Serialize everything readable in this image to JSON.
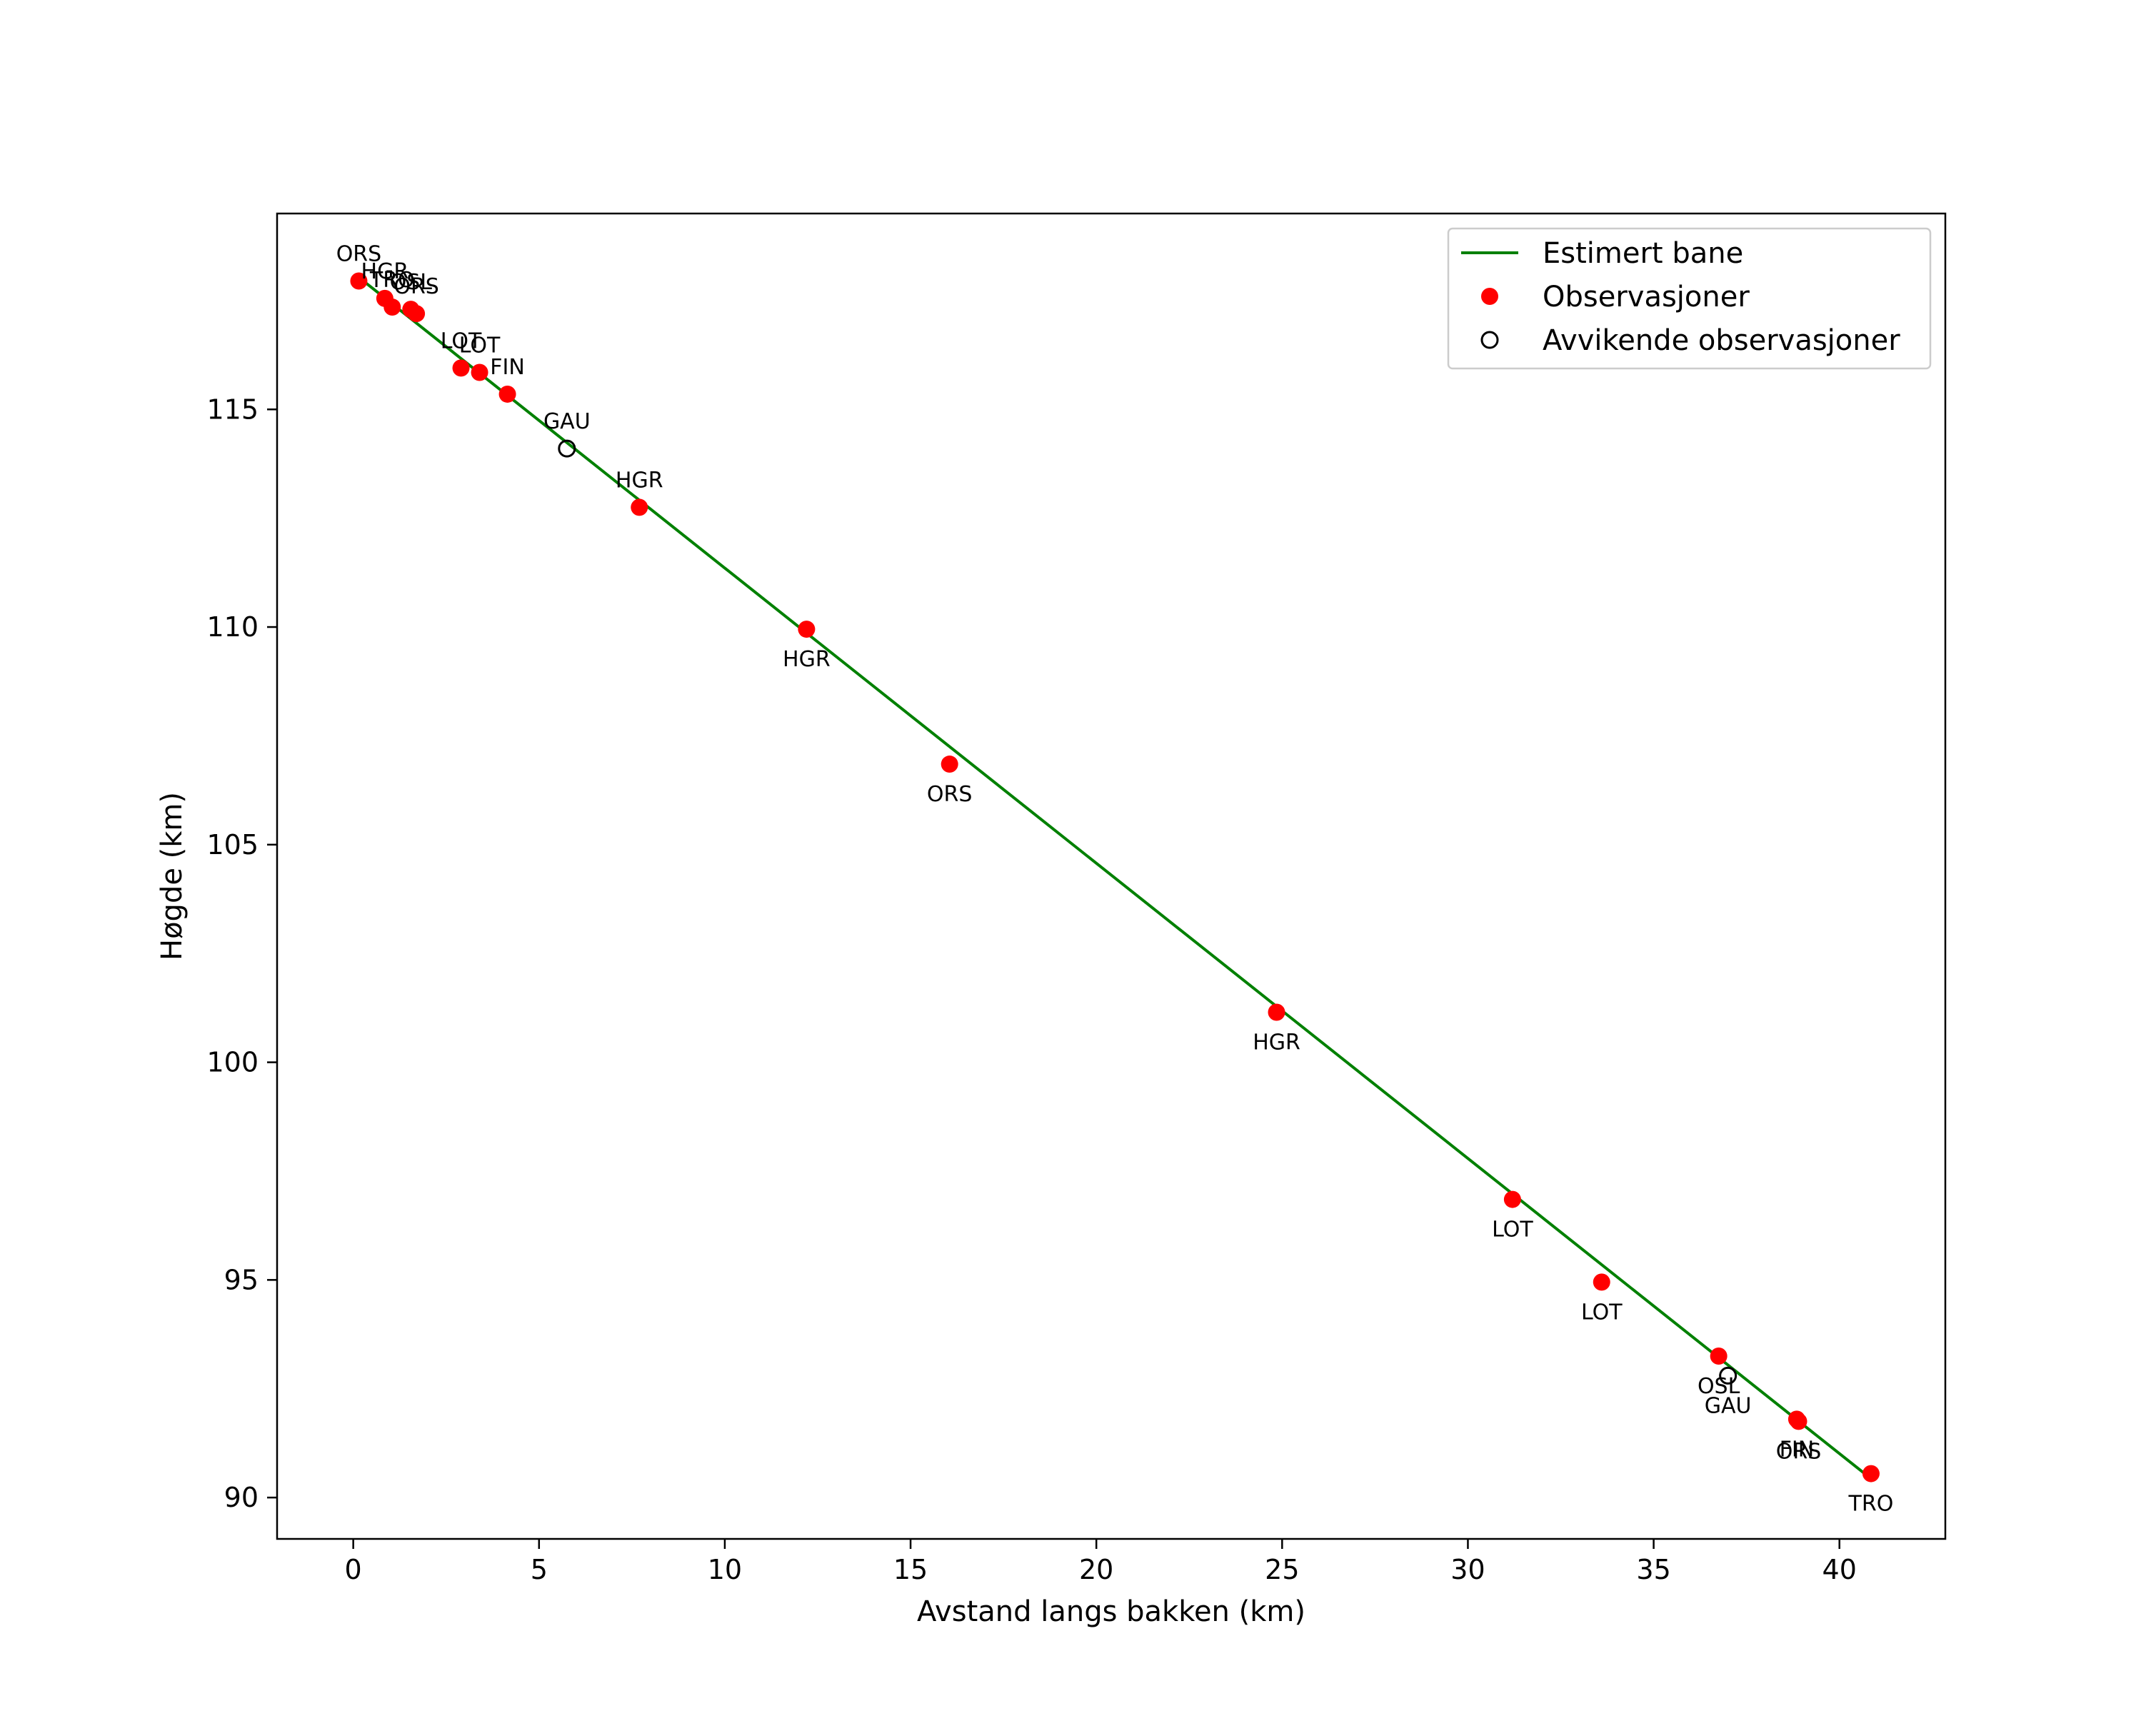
{
  "chart_data": {
    "type": "scatter",
    "title": "",
    "xlabel": "Avstand langs bakken (km)",
    "ylabel": "Høgde (km)",
    "xlim": [
      -2.05,
      42.85
    ],
    "ylim": [
      89.05,
      119.5
    ],
    "x_ticks": [
      0,
      5,
      10,
      15,
      20,
      25,
      30,
      35,
      40
    ],
    "y_ticks": [
      90,
      95,
      100,
      105,
      110,
      115
    ],
    "grid": false,
    "legend_position": "top-right",
    "legend": [
      {
        "label": "Estimert bane",
        "kind": "line",
        "color": "#008000"
      },
      {
        "label": "Observasjoner",
        "kind": "marker",
        "color": "#ff0000"
      },
      {
        "label": "Avvikende observasjoner",
        "kind": "hollow-marker",
        "color": "#000000"
      }
    ],
    "series": [
      {
        "name": "Estimert bane",
        "type": "line",
        "color": "#008000",
        "x": [
          0.2,
          40.9
        ],
        "y": [
          118.0,
          90.4
        ]
      },
      {
        "name": "Observasjoner",
        "type": "scatter",
        "color": "#ff0000",
        "points": [
          {
            "x": 0.15,
            "y": 117.95,
            "label": "ORS",
            "label_pos": "above"
          },
          {
            "x": 0.85,
            "y": 117.55,
            "label": "HGR",
            "label_pos": "above"
          },
          {
            "x": 1.05,
            "y": 117.35,
            "label": "TRO",
            "label_pos": "above"
          },
          {
            "x": 1.55,
            "y": 117.3,
            "label": "OSL",
            "label_pos": "above"
          },
          {
            "x": 1.7,
            "y": 117.2,
            "label": "ORS",
            "label_pos": "above"
          },
          {
            "x": 2.9,
            "y": 115.95,
            "label": "LOT",
            "label_pos": "above"
          },
          {
            "x": 3.4,
            "y": 115.85,
            "label": "LOT",
            "label_pos": "above"
          },
          {
            "x": 4.15,
            "y": 115.35,
            "label": "FIN",
            "label_pos": "above"
          },
          {
            "x": 7.7,
            "y": 112.75,
            "label": "HGR",
            "label_pos": "above"
          },
          {
            "x": 12.2,
            "y": 109.95,
            "label": "HGR",
            "label_pos": "below"
          },
          {
            "x": 16.05,
            "y": 106.85,
            "label": "ORS",
            "label_pos": "below"
          },
          {
            "x": 24.85,
            "y": 101.15,
            "label": "HGR",
            "label_pos": "below"
          },
          {
            "x": 31.2,
            "y": 96.85,
            "label": "LOT",
            "label_pos": "below"
          },
          {
            "x": 33.6,
            "y": 94.95,
            "label": "LOT",
            "label_pos": "below"
          },
          {
            "x": 36.75,
            "y": 93.25,
            "label": "OSL",
            "label_pos": "below"
          },
          {
            "x": 38.85,
            "y": 91.8,
            "label": "FIN",
            "label_pos": "below"
          },
          {
            "x": 38.9,
            "y": 91.75,
            "label": "ORS",
            "label_pos": "below"
          },
          {
            "x": 40.85,
            "y": 90.55,
            "label": "TRO",
            "label_pos": "below"
          }
        ]
      },
      {
        "name": "Avvikende observasjoner",
        "type": "scatter-hollow",
        "color": "#000000",
        "points": [
          {
            "x": 5.75,
            "y": 114.1,
            "label": "GAU",
            "label_pos": "above"
          },
          {
            "x": 37.0,
            "y": 92.8,
            "label": "GAU",
            "label_pos": "below"
          }
        ]
      }
    ]
  }
}
